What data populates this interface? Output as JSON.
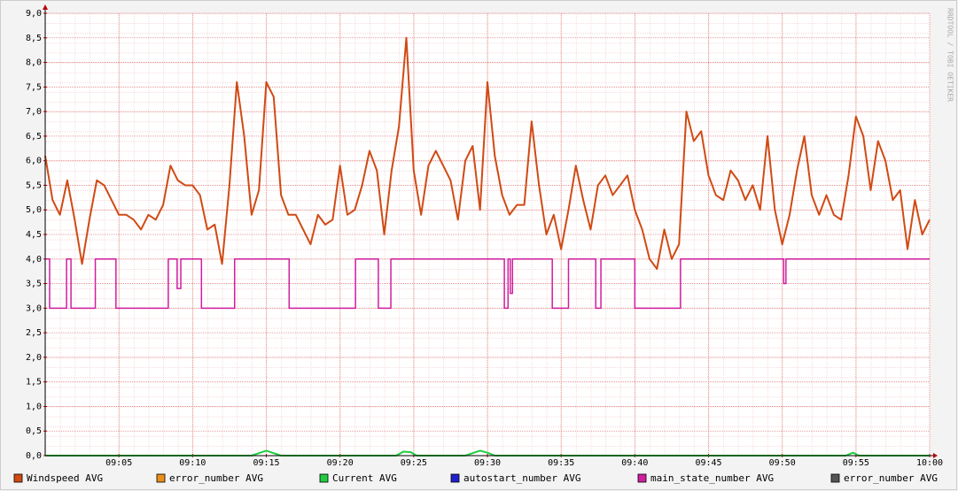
{
  "chart_data": {
    "type": "line",
    "watermark": "RRDTOOL / TOBI OETIKER",
    "xlim": [
      0,
      60
    ],
    "ylim": [
      0,
      9
    ],
    "grid": true,
    "xticks": [
      {
        "value": 5,
        "label": "09:05"
      },
      {
        "value": 10,
        "label": "09:10"
      },
      {
        "value": 15,
        "label": "09:15"
      },
      {
        "value": 20,
        "label": "09:20"
      },
      {
        "value": 25,
        "label": "09:25"
      },
      {
        "value": 30,
        "label": "09:30"
      },
      {
        "value": 35,
        "label": "09:35"
      },
      {
        "value": 40,
        "label": "09:40"
      },
      {
        "value": 45,
        "label": "09:45"
      },
      {
        "value": 50,
        "label": "09:50"
      },
      {
        "value": 55,
        "label": "09:55"
      },
      {
        "value": 60,
        "label": "10:00"
      }
    ],
    "yticks": [
      {
        "value": 0,
        "label": "0,0"
      },
      {
        "value": 0.5,
        "label": "0,5"
      },
      {
        "value": 1,
        "label": "1,0"
      },
      {
        "value": 1.5,
        "label": "1,5"
      },
      {
        "value": 2,
        "label": "2,0"
      },
      {
        "value": 2.5,
        "label": "2,5"
      },
      {
        "value": 3,
        "label": "3,0"
      },
      {
        "value": 3.5,
        "label": "3,5"
      },
      {
        "value": 4,
        "label": "4,0"
      },
      {
        "value": 4.5,
        "label": "4,5"
      },
      {
        "value": 5,
        "label": "5,0"
      },
      {
        "value": 5.5,
        "label": "5,5"
      },
      {
        "value": 6,
        "label": "6,0"
      },
      {
        "value": 6.5,
        "label": "6,5"
      },
      {
        "value": 7,
        "label": "7,0"
      },
      {
        "value": 7.5,
        "label": "7,5"
      },
      {
        "value": 8,
        "label": "8,0"
      },
      {
        "value": 8.5,
        "label": "8,5"
      },
      {
        "value": 9,
        "label": "9,0"
      }
    ],
    "series": [
      {
        "name": "Windspeed AVG",
        "color": "#d04a14",
        "x": [
          0,
          0.5,
          1,
          1.5,
          2,
          2.5,
          3,
          3.5,
          4,
          4.5,
          5,
          5.5,
          6,
          6.5,
          7,
          7.5,
          8,
          8.5,
          9,
          9.5,
          10,
          10.5,
          11,
          11.5,
          12,
          12.5,
          13,
          13.5,
          14,
          14.5,
          15,
          15.5,
          16,
          16.5,
          17,
          17.5,
          18,
          18.5,
          19,
          19.5,
          20,
          20.5,
          21,
          21.5,
          22,
          22.5,
          23,
          23.5,
          24,
          24.5,
          25,
          25.5,
          26,
          26.5,
          27,
          27.5,
          28,
          28.5,
          29,
          29.5,
          30,
          30.5,
          31,
          31.5,
          32,
          32.5,
          33,
          33.5,
          34,
          34.5,
          35,
          35.5,
          36,
          36.5,
          37,
          37.5,
          38,
          38.5,
          39,
          39.5,
          40,
          40.5,
          41,
          41.5,
          42,
          42.5,
          43,
          43.5,
          44,
          44.5,
          45,
          45.5,
          46,
          46.5,
          47,
          47.5,
          48,
          48.5,
          49,
          49.5,
          50,
          50.5,
          51,
          51.5,
          52,
          52.5,
          53,
          53.5,
          54,
          54.5,
          55,
          55.5,
          56,
          56.5,
          57,
          57.5,
          58,
          58.5,
          59,
          59.5,
          60
        ],
        "values": [
          6.1,
          5.2,
          4.9,
          5.6,
          4.8,
          3.9,
          4.8,
          5.6,
          5.5,
          5.2,
          4.9,
          4.9,
          4.8,
          4.6,
          4.9,
          4.8,
          5.1,
          5.9,
          5.6,
          5.5,
          5.5,
          5.3,
          4.6,
          4.7,
          3.9,
          5.5,
          7.6,
          6.5,
          4.9,
          5.4,
          7.6,
          7.3,
          5.3,
          4.9,
          4.9,
          4.6,
          4.3,
          4.9,
          4.7,
          4.8,
          5.9,
          4.9,
          5.0,
          5.5,
          6.2,
          5.8,
          4.5,
          5.8,
          6.7,
          8.5,
          5.8,
          4.9,
          5.9,
          6.2,
          5.9,
          5.6,
          4.8,
          6.0,
          6.3,
          5.0,
          7.6,
          6.1,
          5.3,
          4.9,
          5.1,
          5.1,
          6.8,
          5.5,
          4.5,
          4.9,
          4.2,
          5.0,
          5.9,
          5.2,
          4.6,
          5.5,
          5.7,
          5.3,
          5.5,
          5.7,
          5.0,
          4.6,
          4.0,
          3.8,
          4.6,
          4.0,
          4.3,
          7.0,
          6.4,
          6.6,
          5.7,
          5.3,
          5.2,
          5.8,
          5.6,
          5.2,
          5.5,
          5.0,
          6.5,
          5.0,
          4.3,
          4.9,
          5.8,
          6.5,
          5.3,
          4.9,
          5.3,
          4.9,
          4.8,
          5.7,
          6.9,
          6.5,
          5.4,
          6.4,
          6.0,
          5.2,
          5.4,
          4.2,
          5.2,
          4.5,
          4.8
        ]
      },
      {
        "name": "error_number AVG",
        "color": "#ea8f19"
      },
      {
        "name": "Current AVG",
        "color": "#20cc40",
        "x": [
          0,
          14,
          14.5,
          15,
          15.5,
          16,
          23.8,
          24.3,
          24.8,
          25.2,
          28.5,
          29,
          29.5,
          30,
          30.5,
          54.3,
          54.8,
          55.2,
          60
        ],
        "values": [
          0,
          0,
          0.05,
          0.1,
          0.05,
          0,
          0,
          0.08,
          0.07,
          0,
          0,
          0.05,
          0.1,
          0.06,
          0,
          0,
          0.06,
          0,
          0
        ]
      },
      {
        "name": "autostart_number AVG",
        "color": "#2020cc"
      },
      {
        "name": "main_state_number AVG",
        "color": "#d01ea0",
        "step": true,
        "x": [
          0,
          0.3,
          1.45,
          1.75,
          3.4,
          4.8,
          8.35,
          8.95,
          9.2,
          10.6,
          12.85,
          16.55,
          21.05,
          22.6,
          23.45,
          31.15,
          31.4,
          31.55,
          31.7,
          34.4,
          35.5,
          37.35,
          37.7,
          40,
          43.1,
          50.1,
          50.25,
          60
        ],
        "values": [
          4,
          3,
          4,
          3,
          4,
          3,
          4,
          3.4,
          4,
          3,
          4,
          3,
          4,
          3,
          4,
          3,
          4,
          3.3,
          4,
          3,
          4,
          3,
          4,
          3,
          4,
          3.5,
          4,
          4
        ]
      },
      {
        "name": "error_number AVG",
        "color": "#555555"
      }
    ]
  }
}
